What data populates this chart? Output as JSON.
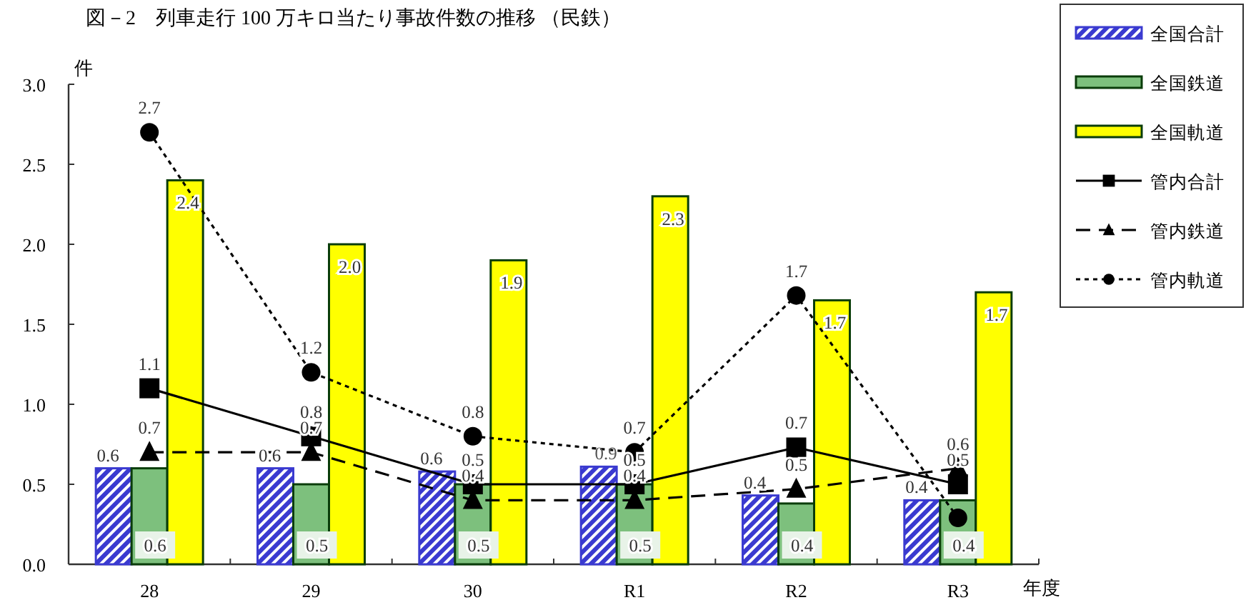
{
  "chart_data": {
    "type": "bar",
    "title": "図－2　列車走行 100 万キロ当たり事故件数の推移 （民鉄）",
    "ylabel": "件",
    "xlabel": "年度",
    "categories": [
      "28",
      "29",
      "30",
      "R1",
      "R2",
      "R3"
    ],
    "ylim": [
      0,
      3
    ],
    "yticks": [
      {
        "value": 0,
        "label": "0.0"
      },
      {
        "value": 0.5,
        "label": "0.5"
      },
      {
        "value": 1,
        "label": "1.0"
      },
      {
        "value": 1.5,
        "label": "1.5"
      },
      {
        "value": 2,
        "label": "2.0"
      },
      {
        "value": 2.5,
        "label": "2.5"
      },
      {
        "value": 3,
        "label": "3.0"
      }
    ],
    "grid": false,
    "legend": "top right",
    "annotations": [
      {
        "text": "0.9",
        "x": "R1",
        "y": 0.7
      }
    ],
    "series": [
      {
        "name": "全国合計",
        "color": "#3a3ad0",
        "values": [
          0.6,
          0.6,
          0.58,
          0.61,
          0.43,
          0.4
        ],
        "value_labels": [
          "0.6",
          "0.6",
          "0.6",
          null,
          "0.4",
          "0.4"
        ]
      },
      {
        "name": "全国鉄道",
        "color": "#7dc07d",
        "values": [
          0.6,
          0.5,
          0.5,
          0.5,
          0.38,
          0.4
        ],
        "value_labels": [
          "0.6",
          "0.5",
          "0.5",
          "0.5",
          "0.4",
          "0.4"
        ]
      },
      {
        "name": "全国軌道",
        "color": "#ffff00",
        "values": [
          2.4,
          2.0,
          1.9,
          2.3,
          1.65,
          1.7
        ],
        "value_labels": [
          "2.4",
          "2.0",
          "1.9",
          "2.3",
          "1.7",
          "1.7"
        ]
      },
      {
        "name": "管内合計",
        "type": "line",
        "color": "#000000",
        "marker": "square",
        "line_style": "solid",
        "values": [
          1.1,
          0.8,
          0.5,
          0.5,
          0.73,
          0.5
        ],
        "value_labels": [
          "1.1",
          "0.8",
          "0.5",
          "0.5",
          "0.7",
          "0.5"
        ]
      },
      {
        "name": "管内鉄道",
        "type": "line",
        "color": "#000000",
        "marker": "triangle",
        "line_style": "dashed",
        "values": [
          0.7,
          0.7,
          0.4,
          0.4,
          0.47,
          0.6
        ],
        "value_labels": [
          "0.7",
          "0.7",
          "0.4",
          "0.4",
          "0.5",
          "0.6"
        ]
      },
      {
        "name": "管内軌道",
        "type": "line",
        "color": "#000000",
        "marker": "circle",
        "line_style": "dotted",
        "values": [
          2.7,
          1.2,
          0.8,
          0.7,
          1.68,
          0.29
        ],
        "value_labels": [
          "2.7",
          "1.2",
          "0.8",
          "0.7",
          "1.7",
          null
        ]
      }
    ]
  }
}
